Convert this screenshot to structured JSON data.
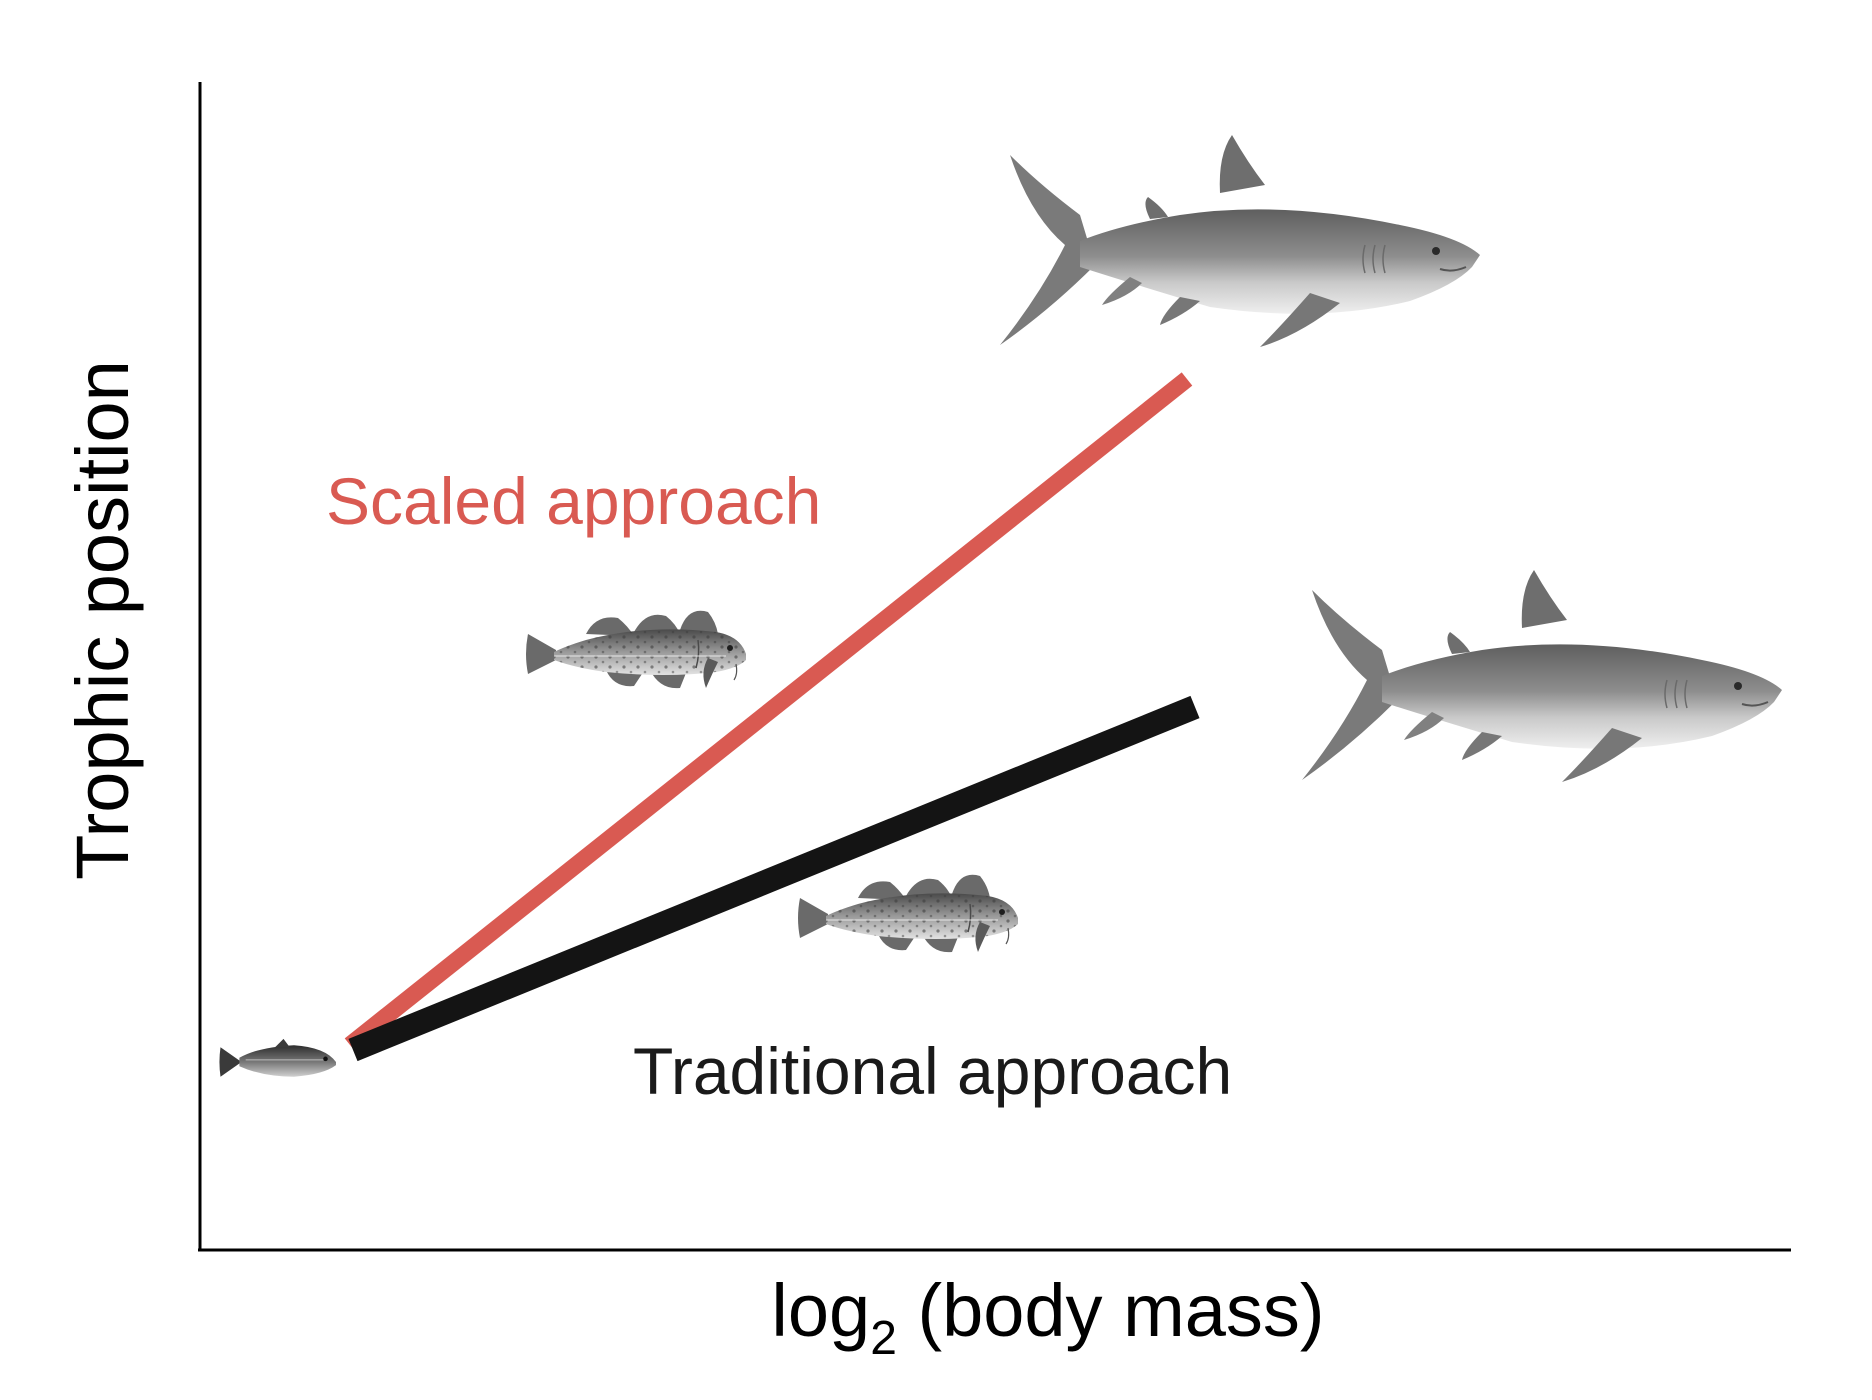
{
  "figure": {
    "y_axis_label": "Trophic position",
    "x_axis_label_base": "log",
    "x_axis_label_subscript": "2",
    "x_axis_label_rest": " (body mass)"
  },
  "lines": {
    "scaled": {
      "label": "Scaled approach",
      "color": "#d95a52"
    },
    "traditional": {
      "label": "Traditional approach",
      "color": "#141414"
    }
  },
  "organisms": [
    {
      "name": "small-fish",
      "icon": "herring"
    },
    {
      "name": "cod-upper",
      "icon": "cod"
    },
    {
      "name": "cod-lower",
      "icon": "cod"
    },
    {
      "name": "shark-upper",
      "icon": "shark"
    },
    {
      "name": "shark-lower",
      "icon": "shark"
    }
  ],
  "colors": {
    "axis": "#000000",
    "text": "#1a1a1a",
    "fish_grey": "#8c8c8c"
  }
}
